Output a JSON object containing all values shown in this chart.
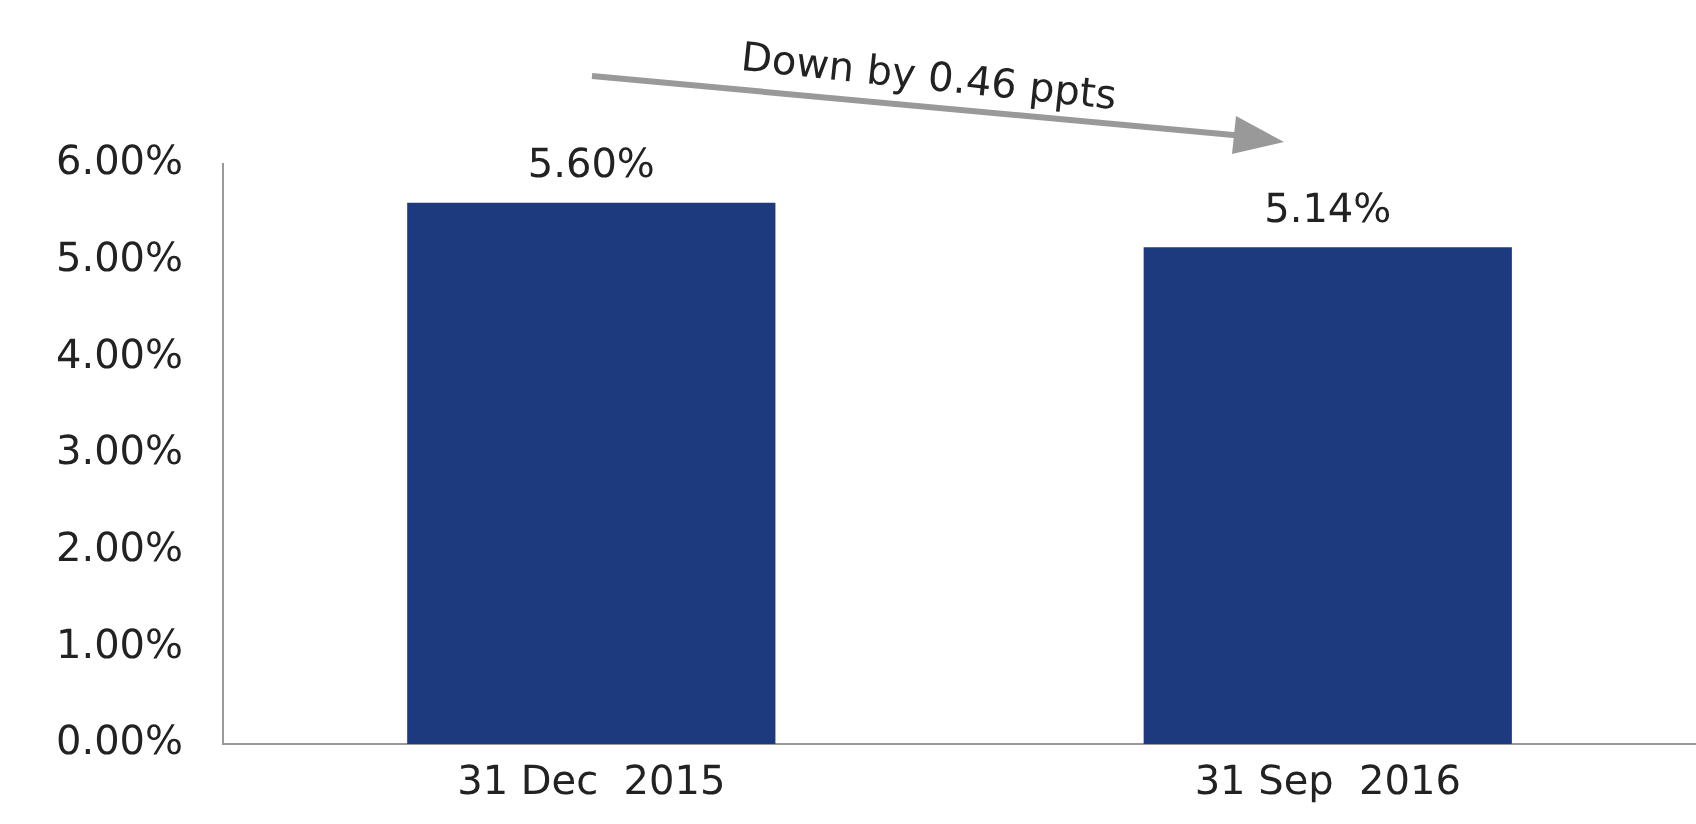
{
  "chart_data": {
    "type": "bar",
    "categories": [
      "31 Dec  2015",
      "31 Sep  2016"
    ],
    "values": [
      5.6,
      5.14
    ],
    "value_labels": [
      "5.60%",
      "5.14%"
    ],
    "color": "#1d3a7e",
    "ylim": [
      0,
      6
    ],
    "yticks": [
      {
        "value": 0,
        "label": "0.00%"
      },
      {
        "value": 1,
        "label": "1.00%"
      },
      {
        "value": 2,
        "label": "2.00%"
      },
      {
        "value": 3,
        "label": "3.00%"
      },
      {
        "value": 4,
        "label": "4.00%"
      },
      {
        "value": 5,
        "label": "5.00%"
      },
      {
        "value": 6,
        "label": "6.00%"
      }
    ],
    "grid": false,
    "legend": false,
    "annotations": [
      "Down by 0.46 ppts"
    ]
  }
}
